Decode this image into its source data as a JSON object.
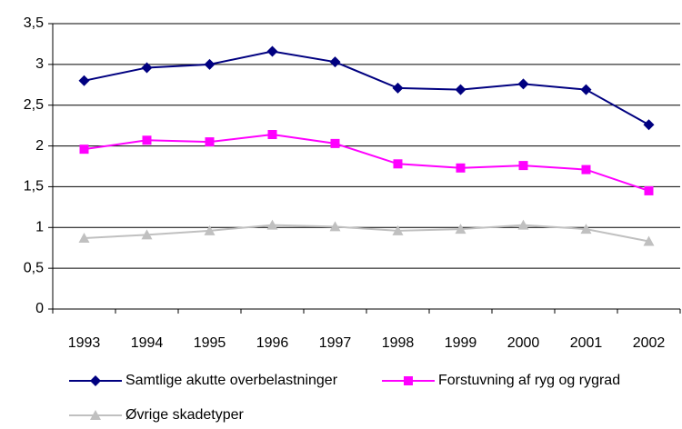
{
  "chart_data": {
    "type": "line",
    "categories": [
      "1993",
      "1994",
      "1995",
      "1996",
      "1997",
      "1998",
      "1999",
      "2000",
      "2001",
      "2002"
    ],
    "series": [
      {
        "name": "Samtlige akutte overbelastninger",
        "color": "#000080",
        "marker": "diamond",
        "values": [
          2.8,
          2.96,
          3.0,
          3.16,
          3.03,
          2.71,
          2.69,
          2.76,
          2.69,
          2.26
        ]
      },
      {
        "name": "Forstuvning af ryg og rygrad",
        "color": "#ff00ff",
        "marker": "square",
        "values": [
          1.96,
          2.07,
          2.05,
          2.14,
          2.03,
          1.78,
          1.73,
          1.76,
          1.71,
          1.45
        ]
      },
      {
        "name": "Øvrige skadetyper",
        "color": "#c0c0c0",
        "marker": "triangle",
        "values": [
          0.87,
          0.91,
          0.96,
          1.03,
          1.01,
          0.96,
          0.98,
          1.03,
          0.98,
          0.83
        ]
      }
    ],
    "ylim": [
      0,
      3.5
    ],
    "yticks": [
      0,
      {
        "value": 0.5,
        "label": "0,5"
      },
      1,
      {
        "value": 1.5,
        "label": "1,5"
      },
      2,
      {
        "value": 2.5,
        "label": "2,5"
      },
      3,
      {
        "value": 3.5,
        "label": "3,5"
      }
    ],
    "grid": true,
    "legend": "bottom"
  }
}
